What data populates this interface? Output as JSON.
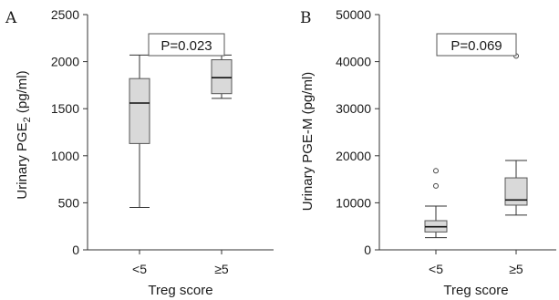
{
  "chart_data": [
    {
      "type": "box",
      "panel_label": "A",
      "xlabel": "Treg score",
      "ylabel": "Urinary PGE2 (pg/ml)",
      "ylabel_main": "Urinary PGE",
      "ylabel_sub": "2",
      "ylabel_unit": " (pg/ml)",
      "ylim": [
        0,
        2500
      ],
      "yticks": [
        0,
        500,
        1000,
        1500,
        2000,
        2500
      ],
      "ytick_labels": [
        "0",
        "500",
        "1000",
        "1500",
        "2000",
        "2500"
      ],
      "categories": [
        "<5",
        "≥5"
      ],
      "annotation": "P=0.023",
      "box_color": "#d9d9d9",
      "boxes": [
        {
          "category": "<5",
          "whisker_low": 450,
          "q1": 1130,
          "median": 1560,
          "q3": 1820,
          "whisker_high": 2070,
          "outliers": []
        },
        {
          "category": "≥5",
          "whisker_low": 1610,
          "q1": 1660,
          "median": 1830,
          "q3": 2020,
          "whisker_high": 2070,
          "outliers": []
        }
      ]
    },
    {
      "type": "box",
      "panel_label": "B",
      "xlabel": "Treg score",
      "ylabel": "Urinary PGE-M (pg/ml)",
      "ylabel_main": "Urinary PGE-M (pg/ml)",
      "ylabel_sub": "",
      "ylabel_unit": "",
      "ylim": [
        0,
        50000
      ],
      "yticks": [
        0,
        10000,
        20000,
        30000,
        40000,
        50000
      ],
      "ytick_labels": [
        "0",
        "10000",
        "20000",
        "30000",
        "40000",
        "50000"
      ],
      "categories": [
        "<5",
        "≥5"
      ],
      "annotation": "P=0.069",
      "box_color": "#d9d9d9",
      "boxes": [
        {
          "category": "<5",
          "whisker_low": 2600,
          "q1": 3800,
          "median": 4900,
          "q3": 6200,
          "whisker_high": 9300,
          "outliers": [
            13600,
            16800
          ]
        },
        {
          "category": "≥5",
          "whisker_low": 7400,
          "q1": 9500,
          "median": 10600,
          "q3": 15300,
          "whisker_high": 19000,
          "outliers": [
            41200
          ]
        }
      ]
    }
  ]
}
